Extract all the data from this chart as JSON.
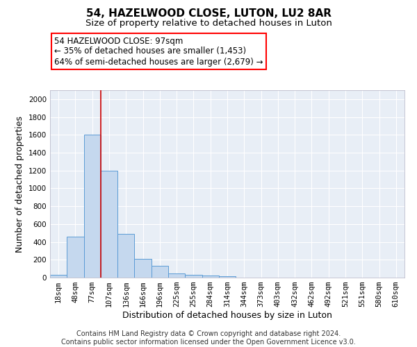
{
  "title1": "54, HAZELWOOD CLOSE, LUTON, LU2 8AR",
  "title2": "Size of property relative to detached houses in Luton",
  "xlabel": "Distribution of detached houses by size in Luton",
  "ylabel": "Number of detached properties",
  "bar_color": "#c5d8ee",
  "bar_edge_color": "#5b9bd5",
  "bg_color": "#e8eef6",
  "categories": [
    "18sqm",
    "48sqm",
    "77sqm",
    "107sqm",
    "136sqm",
    "166sqm",
    "196sqm",
    "225sqm",
    "255sqm",
    "284sqm",
    "314sqm",
    "344sqm",
    "373sqm",
    "403sqm",
    "432sqm",
    "462sqm",
    "492sqm",
    "521sqm",
    "551sqm",
    "580sqm",
    "610sqm"
  ],
  "values": [
    35,
    460,
    1600,
    1200,
    490,
    210,
    130,
    45,
    30,
    20,
    15,
    0,
    0,
    0,
    0,
    0,
    0,
    0,
    0,
    0,
    0
  ],
  "ylim": [
    0,
    2100
  ],
  "yticks": [
    0,
    200,
    400,
    600,
    800,
    1000,
    1200,
    1400,
    1600,
    1800,
    2000
  ],
  "red_line_bar_index": 2.5,
  "annotation_title": "54 HAZELWOOD CLOSE: 97sqm",
  "annotation_line1": "← 35% of detached houses are smaller (1,453)",
  "annotation_line2": "64% of semi-detached houses are larger (2,679) →",
  "footer": "Contains HM Land Registry data © Crown copyright and database right 2024.\nContains public sector information licensed under the Open Government Licence v3.0.",
  "title1_fontsize": 11,
  "title2_fontsize": 9.5,
  "xlabel_fontsize": 9,
  "ylabel_fontsize": 9,
  "tick_fontsize": 7.5,
  "annotation_fontsize": 8.5,
  "footer_fontsize": 7
}
